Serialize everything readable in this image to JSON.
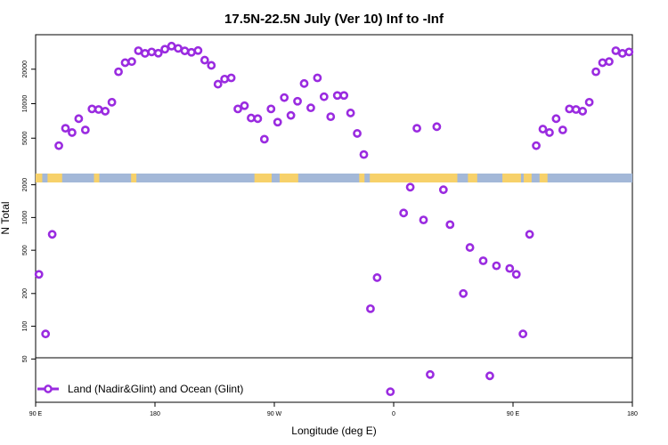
{
  "chart_data": {
    "type": "scatter",
    "title": "17.5N-22.5N July (Ver 10)   Inf to -Inf",
    "xlabel": "Longitude (deg E)",
    "ylabel": "N Total",
    "x_ticks": [
      {
        "lon": -270,
        "label": "90 E"
      },
      {
        "lon": -180,
        "label": "180"
      },
      {
        "lon": -90,
        "label": "90 W"
      },
      {
        "lon": 0,
        "label": "0"
      },
      {
        "lon": 90,
        "label": "90 E"
      },
      {
        "lon": 180,
        "label": "180"
      }
    ],
    "xlim": [
      -270,
      180
    ],
    "upper_panel": {
      "scale": "log",
      "ylim": [
        2500,
        40000
      ],
      "ticks": [
        {
          "value": 5000,
          "label": "5000"
        },
        {
          "value": 10000,
          "label": "10000"
        },
        {
          "value": 20000,
          "label": "20000"
        }
      ]
    },
    "lower_panel": {
      "scale": "log",
      "ylim": [
        20,
        2100
      ],
      "ticks": [
        {
          "value": 50,
          "label": "50"
        },
        {
          "value": 100,
          "label": "100"
        },
        {
          "value": 200,
          "label": "200"
        },
        {
          "value": 500,
          "label": "500"
        },
        {
          "value": 1000,
          "label": "1000"
        },
        {
          "value": 2000,
          "label": "2000"
        }
      ]
    },
    "series": [
      {
        "name": "Land (Nadir&Glint) and Ocean (Glint)",
        "color": "#9a2be0",
        "marker": "circle-open",
        "upper_points": [
          [
            -252.5,
            4300
          ],
          [
            -247.5,
            6100
          ],
          [
            -242.5,
            5600
          ],
          [
            -237.5,
            7400
          ],
          [
            -232.5,
            5900
          ],
          [
            -227.5,
            9000
          ],
          [
            -222.5,
            8900
          ],
          [
            -217.5,
            8600
          ],
          [
            -212.5,
            10300
          ],
          [
            -207.5,
            19000
          ],
          [
            -202.5,
            22800
          ],
          [
            -197.5,
            23300
          ],
          [
            -192.5,
            29000
          ],
          [
            -187.5,
            27500
          ],
          [
            -182.5,
            28300
          ],
          [
            -177.5,
            27600
          ],
          [
            -172.5,
            29900
          ],
          [
            -167.5,
            31800
          ],
          [
            -162.5,
            30400
          ],
          [
            -157.5,
            28900
          ],
          [
            -152.5,
            28100
          ],
          [
            -147.5,
            29100
          ],
          [
            -142.5,
            24000
          ],
          [
            -137.5,
            21600
          ],
          [
            -132.5,
            14800
          ],
          [
            -127.5,
            16400
          ],
          [
            -122.5,
            16800
          ],
          [
            -117.5,
            9000
          ],
          [
            -112.5,
            9600
          ],
          [
            -107.5,
            7500
          ],
          [
            -102.5,
            7400
          ],
          [
            -97.5,
            4900
          ],
          [
            -92.5,
            9000
          ],
          [
            -87.5,
            6900
          ],
          [
            -82.5,
            11300
          ],
          [
            -77.5,
            7900
          ],
          [
            -72.5,
            10500
          ],
          [
            -67.5,
            15000
          ],
          [
            -62.5,
            9200
          ],
          [
            -57.5,
            16800
          ],
          [
            -52.5,
            11500
          ],
          [
            -47.5,
            7700
          ],
          [
            -42.5,
            11800
          ],
          [
            -37.5,
            11800
          ],
          [
            -32.5,
            8300
          ],
          [
            -27.5,
            5500
          ],
          [
            -22.5,
            3600
          ],
          [
            17.5,
            6100
          ],
          [
            32.5,
            6300
          ],
          [
            107.5,
            4300
          ],
          [
            112.5,
            6000
          ],
          [
            117.5,
            5600
          ],
          [
            122.5,
            7400
          ],
          [
            127.5,
            5900
          ],
          [
            132.5,
            9000
          ],
          [
            137.5,
            8900
          ],
          [
            142.5,
            8600
          ],
          [
            147.5,
            10300
          ],
          [
            152.5,
            19000
          ],
          [
            157.5,
            22800
          ],
          [
            162.5,
            23300
          ],
          [
            167.5,
            29000
          ],
          [
            172.5,
            27500
          ],
          [
            177.5,
            28300
          ]
        ],
        "lower_points": [
          [
            -267.5,
            300
          ],
          [
            -262.5,
            85
          ],
          [
            -257.5,
            700
          ],
          [
            -17.5,
            145
          ],
          [
            -12.5,
            280
          ],
          [
            -2.5,
            25
          ],
          [
            7.5,
            1100
          ],
          [
            12.5,
            1900
          ],
          [
            22.5,
            950
          ],
          [
            27.5,
            36
          ],
          [
            37.5,
            1800
          ],
          [
            42.5,
            860
          ],
          [
            57.5,
            530
          ],
          [
            52.5,
            200
          ],
          [
            67.5,
            400
          ],
          [
            72.5,
            35
          ],
          [
            77.5,
            360
          ],
          [
            87.5,
            340
          ],
          [
            92.5,
            300
          ],
          [
            97.5,
            85
          ],
          [
            102.5,
            700
          ]
        ]
      }
    ],
    "legend_position": "bottom-left"
  },
  "map_strip": {
    "ocean_color": "#a3b8d8",
    "land_color": "#f7d16a"
  }
}
